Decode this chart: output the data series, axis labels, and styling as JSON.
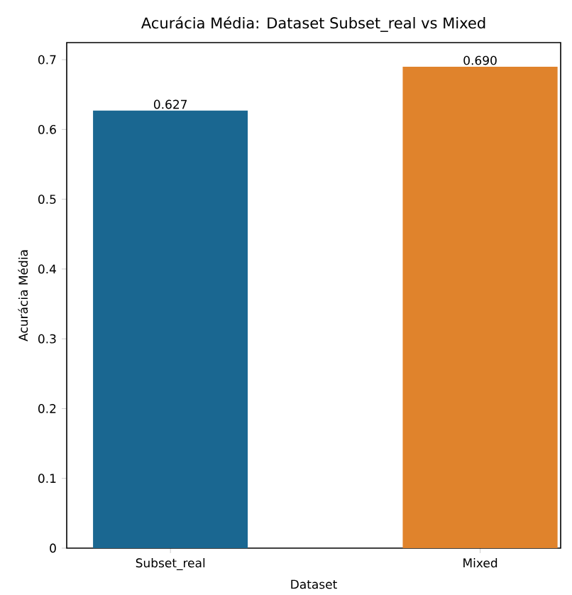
{
  "chart_data": {
    "type": "bar",
    "title": "Acurácia Média: Dataset Subset_real vs Mixed",
    "xlabel": "Dataset",
    "ylabel": "Acurácia Média",
    "categories": [
      "Subset_real",
      "Mixed"
    ],
    "values": [
      0.627,
      0.69
    ],
    "colors": [
      "#1a6791",
      "#e0832c"
    ],
    "value_labels": [
      "0.627",
      "0.690"
    ],
    "ylim": [
      0,
      0.7245
    ],
    "yticks": [
      0,
      0.1,
      0.2,
      0.3,
      0.4,
      0.5,
      0.6,
      0.7
    ],
    "grid": false
  }
}
